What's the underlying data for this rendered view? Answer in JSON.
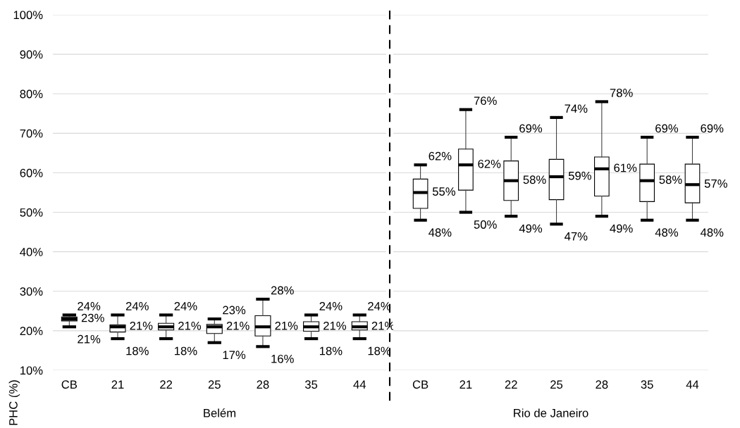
{
  "chart_data": [
    {
      "type": "box",
      "ylabel": "PHC (%)",
      "xlabel": "Belém",
      "categories": [
        "CB",
        "21",
        "22",
        "25",
        "28",
        "35",
        "44"
      ],
      "boxes": [
        {
          "low": 21,
          "q1": 22.5,
          "median": 23,
          "q3": 23.5,
          "high": 24
        },
        {
          "low": 18,
          "q1": 19.7,
          "median": 21,
          "q3": 21.5,
          "high": 24
        },
        {
          "low": 18,
          "q1": 20.2,
          "median": 21,
          "q3": 21.9,
          "high": 24
        },
        {
          "low": 17,
          "q1": 19.3,
          "median": 21,
          "q3": 21.6,
          "high": 23
        },
        {
          "low": 16,
          "q1": 18.7,
          "median": 21,
          "q3": 23.8,
          "high": 28
        },
        {
          "low": 18,
          "q1": 19.9,
          "median": 21,
          "q3": 22.3,
          "high": 24
        },
        {
          "low": 18,
          "q1": 20.2,
          "median": 21,
          "q3": 22.3,
          "high": 24
        }
      ],
      "ylim": [
        10,
        100
      ],
      "yticks": [
        {
          "value": 10,
          "label": "10%"
        },
        {
          "value": 20,
          "label": "20%"
        },
        {
          "value": 30,
          "label": "30%"
        },
        {
          "value": 40,
          "label": "40%"
        },
        {
          "value": 50,
          "label": "50%"
        },
        {
          "value": 60,
          "label": "60%"
        },
        {
          "value": 70,
          "label": "70%"
        },
        {
          "value": 80,
          "label": "80%"
        },
        {
          "value": 90,
          "label": "90%"
        },
        {
          "value": 100,
          "label": "100%"
        }
      ],
      "grid": "y",
      "annotations": [
        {
          "text": "24%",
          "x": "CB",
          "y": 24
        },
        {
          "text": "23%",
          "x": "CB",
          "y": 23
        },
        {
          "text": "21%",
          "x": "CB",
          "y": 21
        },
        {
          "text": "24%",
          "x": "21",
          "y": 24
        },
        {
          "text": "21%",
          "x": "21",
          "y": 21
        },
        {
          "text": "18%",
          "x": "21",
          "y": 18
        },
        {
          "text": "24%",
          "x": "22",
          "y": 24
        },
        {
          "text": "21%",
          "x": "22",
          "y": 21
        },
        {
          "text": "18%",
          "x": "22",
          "y": 18
        },
        {
          "text": "23%",
          "x": "25",
          "y": 23
        },
        {
          "text": "21%",
          "x": "25",
          "y": 21
        },
        {
          "text": "17%",
          "x": "25",
          "y": 17
        },
        {
          "text": "28%",
          "x": "28",
          "y": 28
        },
        {
          "text": "21%",
          "x": "28",
          "y": 21
        },
        {
          "text": "16%",
          "x": "28",
          "y": 16
        },
        {
          "text": "24%",
          "x": "35",
          "y": 24
        },
        {
          "text": "21%",
          "x": "35",
          "y": 21
        },
        {
          "text": "18%",
          "x": "35",
          "y": 18
        },
        {
          "text": "24%",
          "x": "44",
          "y": 24
        },
        {
          "text": "21%",
          "x": "44",
          "y": 21
        },
        {
          "text": "18%",
          "x": "44",
          "y": 18
        }
      ]
    },
    {
      "type": "box",
      "xlabel": "Rio de Janeiro",
      "tick_labels": "x",
      "categories": [
        "CB",
        "21",
        "22",
        "25",
        "28",
        "35",
        "44"
      ],
      "boxes": [
        {
          "low": 48,
          "q1": 51.0,
          "median": 55,
          "q3": 58.4,
          "high": 62
        },
        {
          "low": 50,
          "q1": 55.6,
          "median": 62,
          "q3": 66.0,
          "high": 76
        },
        {
          "low": 49,
          "q1": 53.0,
          "median": 58,
          "q3": 63.0,
          "high": 69
        },
        {
          "low": 47,
          "q1": 53.2,
          "median": 59,
          "q3": 63.4,
          "high": 74
        },
        {
          "low": 49,
          "q1": 54.1,
          "median": 61,
          "q3": 64.0,
          "high": 78
        },
        {
          "low": 48,
          "q1": 52.7,
          "median": 58,
          "q3": 62.2,
          "high": 69
        },
        {
          "low": 48,
          "q1": 52.4,
          "median": 57,
          "q3": 62.2,
          "high": 69
        }
      ],
      "ylim": [
        10,
        100
      ],
      "yticks": [
        10,
        20,
        30,
        40,
        50,
        60,
        70,
        80,
        90,
        100
      ],
      "grid": "y",
      "annotations": [
        {
          "text": "62%",
          "x": "CB",
          "y": 62
        },
        {
          "text": "55%",
          "x": "CB",
          "y": 55
        },
        {
          "text": "48%",
          "x": "CB",
          "y": 48
        },
        {
          "text": "76%",
          "x": "21",
          "y": 76
        },
        {
          "text": "62%",
          "x": "21",
          "y": 62
        },
        {
          "text": "50%",
          "x": "21",
          "y": 50
        },
        {
          "text": "69%",
          "x": "22",
          "y": 69
        },
        {
          "text": "58%",
          "x": "22",
          "y": 58
        },
        {
          "text": "49%",
          "x": "22",
          "y": 49
        },
        {
          "text": "74%",
          "x": "25",
          "y": 74
        },
        {
          "text": "59%",
          "x": "25",
          "y": 59
        },
        {
          "text": "47%",
          "x": "25",
          "y": 47
        },
        {
          "text": "78%",
          "x": "28",
          "y": 78
        },
        {
          "text": "61%",
          "x": "28",
          "y": 61
        },
        {
          "text": "49%",
          "x": "28",
          "y": 49
        },
        {
          "text": "69%",
          "x": "35",
          "y": 69
        },
        {
          "text": "58%",
          "x": "35",
          "y": 58
        },
        {
          "text": "48%",
          "x": "35",
          "y": 48
        },
        {
          "text": "69%",
          "x": "44",
          "y": 69
        },
        {
          "text": "57%",
          "x": "44",
          "y": 57
        },
        {
          "text": "48%",
          "x": "44",
          "y": 48
        }
      ]
    }
  ]
}
